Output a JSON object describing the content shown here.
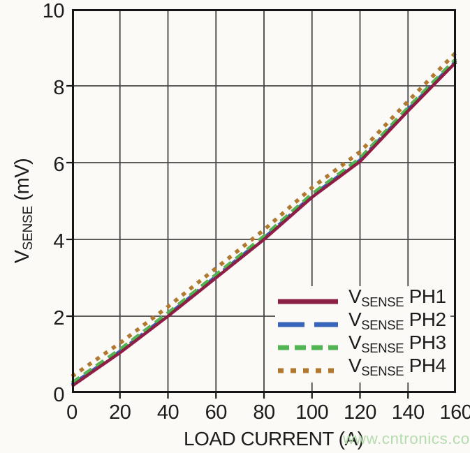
{
  "page": {
    "background": "#fbfaf7",
    "watermark": "www.cntronics.com",
    "watermark_color": "#b5dbae"
  },
  "chart_data": {
    "type": "line",
    "title": "",
    "xlabel": "LOAD CURRENT (A)",
    "ylabel": "VSENSE (mV)",
    "ylabel_parts": {
      "pre": "V",
      "sub": "SENSE",
      "post": " (mV)"
    },
    "xlim": [
      0,
      160
    ],
    "ylim": [
      0,
      10
    ],
    "x_ticks": [
      0,
      20,
      40,
      60,
      80,
      100,
      120,
      140,
      160
    ],
    "y_ticks": [
      0,
      2,
      4,
      6,
      8,
      10
    ],
    "grid": true,
    "grid_color": "#454545",
    "frame_color": "#161616",
    "legend_position": "inside-bottom-right",
    "x": [
      0,
      20,
      40,
      60,
      80,
      100,
      120,
      140,
      160
    ],
    "series": [
      {
        "name": "VSENSE PH1",
        "label_parts": {
          "pre": "V",
          "sub": "SENSE",
          "post": " PH1"
        },
        "color": "#8c1f45",
        "dash": "solid",
        "values": [
          0.18,
          1.05,
          2.0,
          3.0,
          4.0,
          5.1,
          6.03,
          7.35,
          8.62
        ]
      },
      {
        "name": "VSENSE PH2",
        "label_parts": {
          "pre": "V",
          "sub": "SENSE",
          "post": " PH2"
        },
        "color": "#3a64b8",
        "dash": "long-dash",
        "values": [
          0.22,
          1.09,
          2.04,
          3.04,
          4.04,
          5.14,
          6.07,
          7.39,
          8.66
        ]
      },
      {
        "name": "VSENSE PH3",
        "label_parts": {
          "pre": "V",
          "sub": "SENSE",
          "post": " PH3"
        },
        "color": "#52b452",
        "dash": "dash",
        "values": [
          0.27,
          1.14,
          2.09,
          3.09,
          4.09,
          5.19,
          6.12,
          7.44,
          8.71
        ]
      },
      {
        "name": "VSENSE PH4",
        "label_parts": {
          "pre": "V",
          "sub": "SENSE",
          "post": " PH4"
        },
        "color": "#b1782f",
        "dash": "dot",
        "values": [
          0.43,
          1.3,
          2.25,
          3.25,
          4.25,
          5.35,
          6.28,
          7.6,
          8.87
        ]
      }
    ]
  }
}
